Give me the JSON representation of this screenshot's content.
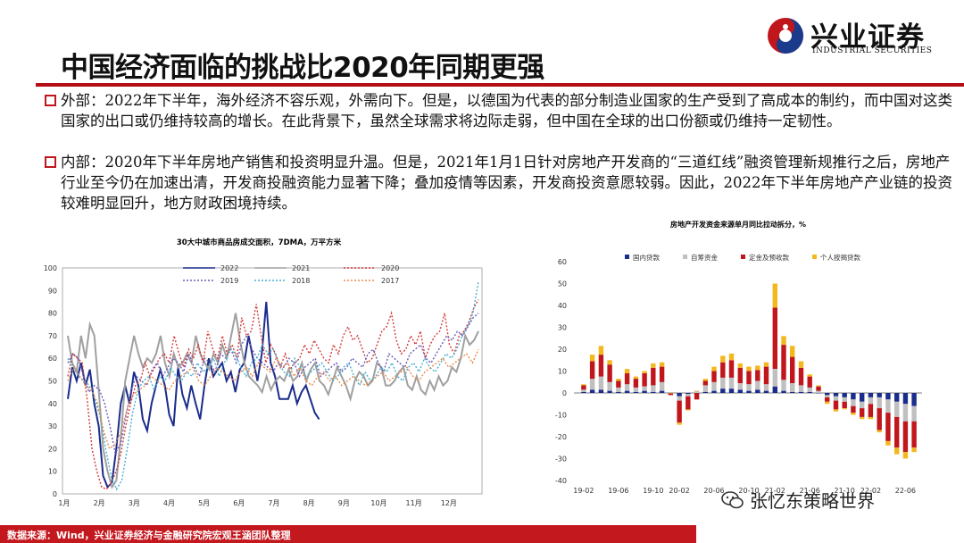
{
  "slide": {
    "title": "中国经济面临的挑战比2020年同期更强"
  },
  "logo": {
    "name_cn": "兴业证券",
    "name_en": "INDUSTRIAL SECURITIES"
  },
  "bullets": [
    {
      "text": "外部：2022年下半年，海外经济不容乐观，外需向下。但是，以德国为代表的部分制造业国家的生产受到了高成本的制约，而中国对这类国家的出口或仍维持较高的增长。在此背景下，虽然全球需求将边际走弱，但中国在全球的出口份额或仍维持一定韧性。"
    },
    {
      "text": "内部：2020年下半年房地产销售和投资明显升温。但是，2021年1月1日针对房地产开发商的“三道红线”融资管理新规推行之后，房地产行业至今仍在加速出清，开发商投融资能力显著下降；叠加疫情等因素，开发商投资意愿较弱。因此，2022年下半年房地产产业链的投资较难明显回升，地方财政困境持续。"
    }
  ],
  "chart_data": [
    {
      "type": "line",
      "title": "30大中城市商品房成交面积，7DMA，万平方米",
      "ylim": [
        0,
        100
      ],
      "yticks": [
        "0",
        "10",
        "20",
        "30",
        "40",
        "50",
        "60",
        "70",
        "80",
        "90",
        "100"
      ],
      "xticks": [
        "1月",
        "2月",
        "3月",
        "4月",
        "5月",
        "6月",
        "7月",
        "8月",
        "9月",
        "10月",
        "11月",
        "12月"
      ],
      "legend": [
        "2022",
        "2021",
        "2020",
        "2019",
        "2018",
        "2017"
      ],
      "series": [
        {
          "name": "2022",
          "color": "#1a2c8c",
          "style": "solid",
          "values": [
            42,
            56,
            50,
            58,
            48,
            55,
            40,
            30,
            8,
            3,
            5,
            20,
            40,
            48,
            40,
            54,
            48,
            33,
            28,
            40,
            48,
            55,
            48,
            35,
            30,
            56,
            44,
            38,
            48,
            40,
            33,
            48,
            60,
            52,
            55,
            58,
            50,
            54,
            45,
            55,
            58,
            70,
            60,
            50,
            62,
            85,
            58,
            52,
            42,
            42,
            42,
            48,
            40,
            45,
            48,
            42,
            36,
            33
          ]
        },
        {
          "name": "2021",
          "color": "#a0a0a0",
          "style": "solid",
          "values": [
            70,
            58,
            54,
            70,
            60,
            75,
            70,
            46,
            20,
            10,
            3,
            6,
            25,
            50,
            60,
            70,
            62,
            56,
            60,
            58,
            62,
            70,
            58,
            52,
            62,
            56,
            58,
            62,
            58,
            70,
            62,
            58,
            55,
            62,
            58,
            66,
            60,
            70,
            80,
            68,
            58,
            52,
            50,
            48,
            45,
            52,
            46,
            50,
            52,
            50,
            55,
            50,
            52,
            58,
            50,
            55,
            58,
            50,
            48,
            44,
            50,
            56,
            52,
            48,
            42,
            50,
            54,
            52,
            48,
            50,
            58,
            56,
            48,
            48,
            50,
            54,
            56,
            48,
            46,
            52,
            46,
            44,
            50,
            46,
            52,
            48,
            50,
            56,
            54,
            60,
            70,
            66,
            68,
            72
          ]
        },
        {
          "name": "2020",
          "color": "#d43a3a",
          "style": "dotted",
          "values": [
            52,
            62,
            60,
            58,
            42,
            20,
            10,
            3,
            2,
            5,
            10,
            18,
            30,
            40,
            48,
            50,
            58,
            52,
            56,
            60,
            62,
            58,
            70,
            62,
            56,
            64,
            60,
            66,
            58,
            72,
            64,
            60,
            70,
            62,
            66,
            60,
            78,
            70,
            72,
            84,
            70,
            58,
            66,
            62,
            56,
            62,
            55,
            58,
            60,
            66,
            62,
            68,
            64,
            60,
            58,
            66,
            62,
            70,
            74,
            68,
            70,
            64,
            58,
            60,
            66,
            72,
            74,
            80,
            68,
            62,
            64,
            70,
            66,
            72,
            60,
            66,
            70,
            72,
            80,
            66,
            62,
            70,
            72,
            76,
            82,
            86
          ]
        },
        {
          "name": "2019",
          "color": "#6a5ab8",
          "style": "dotted",
          "values": [
            58,
            62,
            60,
            52,
            45,
            48,
            46,
            40,
            30,
            18,
            22,
            34,
            46,
            52,
            50,
            48,
            55,
            58,
            52,
            56,
            60,
            58,
            54,
            62,
            56,
            52,
            60,
            58,
            54,
            62,
            60,
            64,
            58,
            66,
            70,
            64,
            60,
            58,
            56,
            54,
            58,
            56,
            60,
            58,
            52,
            56,
            58,
            60,
            52,
            54,
            56,
            58,
            54,
            56,
            60,
            58,
            56,
            62,
            64,
            58,
            54,
            62,
            60,
            58,
            56,
            62,
            64,
            66,
            60,
            58,
            62,
            66,
            70,
            68,
            72,
            70,
            74,
            78,
            80
          ]
        },
        {
          "name": "2018",
          "color": "#44b0d0",
          "style": "dotted",
          "values": [
            60,
            56,
            52,
            50,
            48,
            42,
            34,
            20,
            8,
            2,
            6,
            20,
            36,
            46,
            50,
            52,
            46,
            52,
            50,
            56,
            52,
            50,
            54,
            52,
            58,
            54,
            56,
            60,
            52,
            58,
            64,
            62,
            56,
            52,
            58,
            60,
            66,
            62,
            64,
            58,
            54,
            52,
            60,
            56,
            52,
            54,
            56,
            58,
            54,
            50,
            52,
            56,
            58,
            52,
            48,
            54,
            50,
            52,
            56,
            54,
            58,
            52,
            50,
            56,
            58,
            54,
            60,
            56,
            54,
            58,
            62,
            60,
            64,
            70,
            74,
            80,
            94
          ]
        },
        {
          "name": "2017",
          "color": "#e88a4a",
          "style": "dotted",
          "values": [
            50,
            56,
            52,
            48,
            46,
            40,
            28,
            20,
            22,
            28,
            38,
            44,
            46,
            48,
            52,
            50,
            48,
            46,
            50,
            52,
            54,
            56,
            50,
            48,
            52,
            56,
            54,
            52,
            50,
            54,
            56,
            52,
            58,
            56,
            54,
            60,
            56,
            58,
            52,
            56,
            50,
            48,
            52,
            54,
            50,
            52,
            48,
            50,
            52,
            50,
            48,
            50,
            52,
            54,
            50,
            52,
            54,
            56,
            52,
            50,
            54,
            56,
            58,
            60,
            56,
            58,
            60,
            62,
            58,
            64
          ]
        }
      ]
    },
    {
      "type": "bar",
      "title": "房地产开发资金来源单月同比拉动拆分，%",
      "ylim": [
        -40,
        60
      ],
      "yticks": [
        "60",
        "50",
        "40",
        "30",
        "20",
        "10",
        "0",
        "-10",
        "-20",
        "-30",
        "-40"
      ],
      "xticks": [
        "19-02",
        "19-06",
        "19-10",
        "20-02",
        "20-06",
        "20-10",
        "21-02",
        "21-06",
        "21-10",
        "22-02",
        "22-06"
      ],
      "legend": [
        "国内贷款",
        "自筹资金",
        "定金及预收款",
        "个人按揭贷款"
      ],
      "colors": [
        "#1a2c8c",
        "#c0c0c0",
        "#c0161c",
        "#f2b81e"
      ],
      "categories": [
        "19-02",
        "19-03",
        "19-04",
        "19-05",
        "19-06",
        "19-07",
        "19-08",
        "19-09",
        "19-10",
        "19-11",
        "19-12",
        "20-02",
        "20-03",
        "20-04",
        "20-05",
        "20-06",
        "20-07",
        "20-08",
        "20-09",
        "20-10",
        "20-11",
        "20-12",
        "21-02",
        "21-03",
        "21-04",
        "21-05",
        "21-06",
        "21-07",
        "21-08",
        "21-09",
        "21-10",
        "21-11",
        "21-12",
        "22-02",
        "22-03",
        "22-04",
        "22-05",
        "22-06",
        "22-07"
      ],
      "series": [
        {
          "name": "国内贷款",
          "values": [
            0.5,
            1.5,
            1.5,
            1,
            0.5,
            1,
            0.5,
            1,
            0.5,
            1,
            0,
            -1.5,
            -0.5,
            0,
            0.5,
            1,
            2,
            2,
            1.5,
            1,
            1.5,
            1,
            3,
            1,
            0.5,
            0.5,
            0.5,
            0,
            -1,
            -1.5,
            -2,
            -3,
            -4,
            -2,
            -2,
            -3,
            -4,
            -5,
            -6
          ]
        },
        {
          "name": "自筹资金",
          "values": [
            1,
            5,
            6,
            4,
            2,
            3,
            2,
            2,
            3,
            4,
            0,
            -2,
            -1,
            1,
            3,
            4,
            5,
            5,
            3,
            3,
            4,
            3,
            8,
            5,
            4,
            3,
            2,
            1,
            -1,
            -2,
            -2,
            -3,
            -3,
            -3,
            -5,
            -6,
            -7,
            -8,
            -7
          ]
        },
        {
          "name": "定金及预收款",
          "values": [
            2,
            8,
            10,
            8,
            3,
            5,
            4,
            6,
            8,
            7,
            -1,
            -10,
            -6,
            -3,
            2,
            5,
            7,
            8,
            7,
            6,
            5,
            8,
            28,
            16,
            12,
            8,
            5,
            2,
            -2,
            -4,
            -3,
            -3,
            -4,
            -6,
            -10,
            -13,
            -14,
            -14,
            -12
          ]
        },
        {
          "name": "个人按揭贷款",
          "values": [
            0.5,
            3,
            4,
            2,
            1,
            2,
            1,
            1,
            2,
            2,
            0,
            -1,
            -0.5,
            0,
            1,
            2,
            3,
            3,
            2,
            2,
            2,
            2,
            11,
            4,
            5,
            3,
            1,
            0.5,
            -1,
            -1,
            -0.5,
            -1,
            -1,
            -1,
            -1,
            -2,
            -3,
            -3,
            -2
          ]
        }
      ]
    }
  ],
  "footer": {
    "source": "数据来源：Wind，兴业证券经济与金融研究院宏观王涵团队整理"
  },
  "watermark": {
    "text": "张忆东策略世界"
  }
}
